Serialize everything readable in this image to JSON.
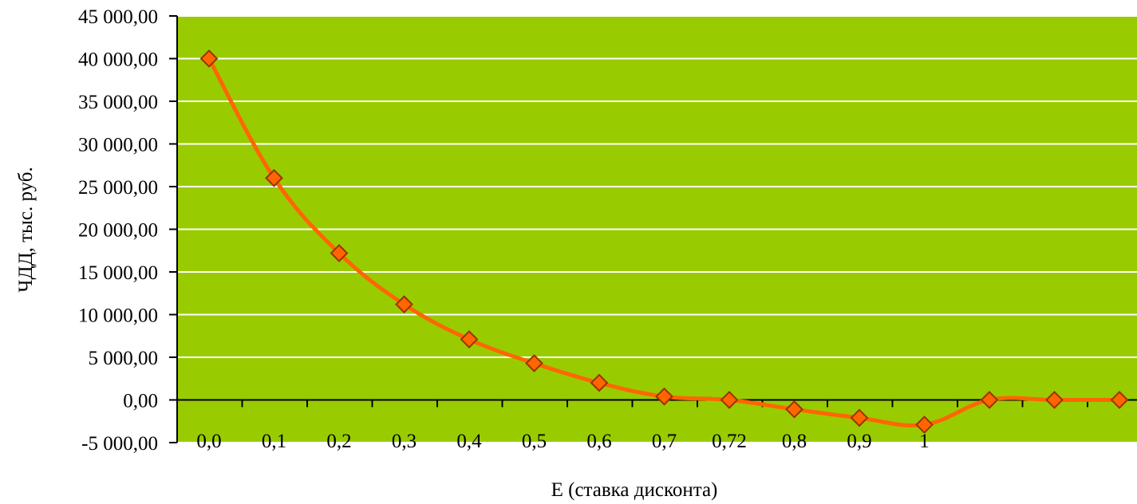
{
  "chart_data": {
    "type": "line",
    "categories": [
      "0,0",
      "0,1",
      "0,2",
      "0,3",
      "0,4",
      "0,5",
      "0,6",
      "0,7",
      "0,72",
      "0,8",
      "0,9",
      "1",
      "",
      "",
      ""
    ],
    "series": [
      {
        "values": [
          40000,
          26000,
          17200,
          11200,
          7100,
          4300,
          2000,
          400,
          0,
          -1100,
          -2100,
          -2900,
          0,
          0,
          0
        ]
      }
    ],
    "y_tick_labels": [
      "-5 000,00",
      "0,00",
      "5 000,00",
      "10 000,00",
      "15 000,00",
      "20 000,00",
      "25 000,00",
      "30 000,00",
      "35 000,00",
      "40 000,00",
      "45 000,00"
    ],
    "xlabel": "Е (ставка дисконта)",
    "ylabel": "ЧДД, тыс. руб.",
    "ylim": [
      -5000,
      45000
    ],
    "y_step": 5000,
    "grid": true,
    "legend": "none"
  },
  "colors": {
    "plot_background": "#99cc00",
    "gridline": "#ffffff",
    "line": "#ff6600",
    "marker_fill": "#ff6600",
    "marker_stroke": "#993300",
    "axis": "#000000"
  }
}
